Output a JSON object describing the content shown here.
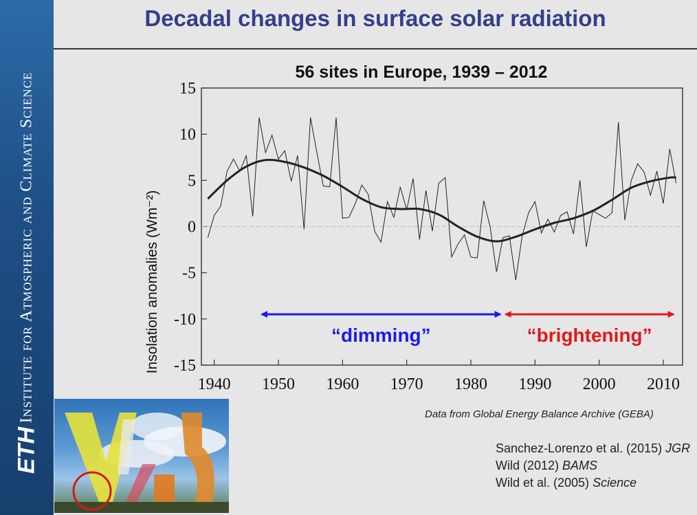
{
  "sidebar": {
    "institute_label": "Institute for Atmospheric and Climate Science",
    "logo_text": "ETH"
  },
  "slide": {
    "title": "Decadal changes in surface solar radiation",
    "geba_note": "Data from Global Energy Balance Archive (GEBA)",
    "references": [
      {
        "text": "Sanchez-Lorenzo et al. (2015) ",
        "journal": "JGR"
      },
      {
        "text": "Wild (2012) ",
        "journal": "BAMS"
      },
      {
        "text": "Wild et al. (2005) ",
        "journal": "Science"
      }
    ]
  },
  "colors": {
    "title": "#333f8c",
    "dimming": "#1a1aee",
    "brightening": "#e01a1a",
    "sidebar": "#1e4f86"
  },
  "chart_data": {
    "type": "line",
    "title": "56 sites in Europe, 1939 – 2012",
    "xlabel": "",
    "ylabel": "Insolation anomalies (Wm⁻²)",
    "xlim": [
      1938,
      2013
    ],
    "ylim": [
      -15,
      15
    ],
    "xticks": [
      1940,
      1950,
      1960,
      1970,
      1980,
      1990,
      2000,
      2010
    ],
    "yticks": [
      15,
      10,
      5,
      0,
      -5,
      -10,
      -15
    ],
    "series": [
      {
        "x": [
          1939,
          1940,
          1941,
          1942,
          1943,
          1944,
          1945,
          1946,
          1947,
          1948,
          1949,
          1950,
          1951,
          1952,
          1953,
          1954,
          1955,
          1956,
          1957,
          1958,
          1959,
          1960,
          1961,
          1962,
          1963,
          1964,
          1965,
          1966,
          1967,
          1968,
          1969,
          1970,
          1971,
          1972,
          1973,
          1974,
          1975,
          1976,
          1977,
          1978,
          1979,
          1980,
          1981,
          1982,
          1983,
          1984,
          1985,
          1986,
          1987,
          1988,
          1989,
          1990,
          1991,
          1992,
          1993,
          1994,
          1995,
          1996,
          1997,
          1998,
          1999,
          2000,
          2001,
          2002,
          2003,
          2004,
          2005,
          2006,
          2007,
          2008,
          2009,
          2010,
          2011,
          2012
        ],
        "values": [
          -1.2,
          1.2,
          2.2,
          6.0,
          7.3,
          6.0,
          7.7,
          1.1,
          11.8,
          8.0,
          9.9,
          7.3,
          8.2,
          4.9,
          7.7,
          -0.3,
          11.8,
          8.0,
          4.4,
          4.3,
          11.8,
          0.9,
          1.0,
          2.5,
          4.5,
          3.5,
          -0.5,
          -1.7,
          2.7,
          1.0,
          4.3,
          1.8,
          5.2,
          -1.4,
          3.9,
          -0.5,
          4.7,
          5.3,
          -3.3,
          -1.9,
          -0.9,
          -3.3,
          -3.4,
          2.8,
          0.0,
          -4.9,
          -1.2,
          -1.0,
          -5.8,
          -1.0,
          1.5,
          2.7,
          -0.7,
          0.8,
          -0.6,
          1.2,
          1.6,
          -0.8,
          5.0,
          -2.2,
          1.7,
          1.3,
          0.9,
          1.5,
          11.3,
          0.7,
          5.0,
          6.8,
          5.9,
          3.4,
          6.0,
          2.5,
          8.4,
          4.7
        ]
      },
      {
        "x": [
          1939,
          1942,
          1945,
          1948,
          1951,
          1954,
          1957,
          1960,
          1963,
          1966,
          1969,
          1972,
          1975,
          1978,
          1981,
          1984,
          1987,
          1990,
          1993,
          1996,
          1999,
          2002,
          2005,
          2008,
          2011,
          2012
        ],
        "values": [
          3.0,
          5.0,
          6.5,
          7.2,
          7.0,
          6.4,
          5.5,
          4.3,
          3.0,
          2.1,
          1.9,
          1.9,
          1.3,
          0.0,
          -1.1,
          -1.6,
          -1.1,
          -0.3,
          0.4,
          0.9,
          1.7,
          2.9,
          4.2,
          4.9,
          5.3,
          5.3
        ]
      }
    ],
    "annotations": [
      {
        "label": "“dimming”",
        "x_start": 1947,
        "x_end": 1985,
        "y": -9.5
      },
      {
        "label": "“brightening”",
        "x_start": 1985,
        "x_end": 2012,
        "y": -9.5
      }
    ]
  }
}
